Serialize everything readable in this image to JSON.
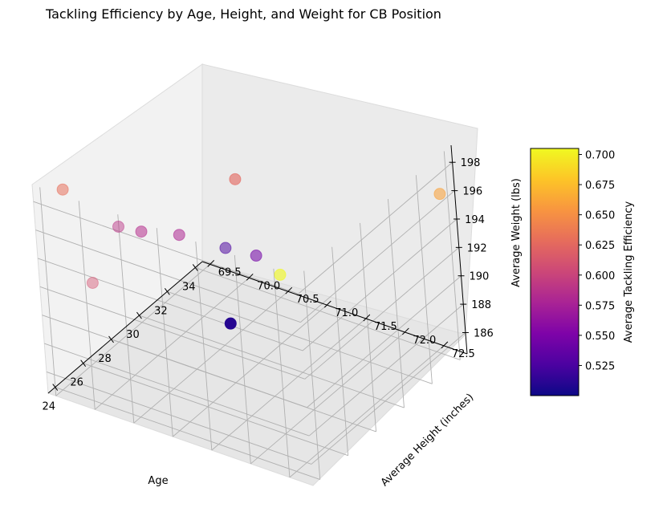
{
  "chart_data": {
    "type": "scatter",
    "projection": "3d",
    "title": "Tackling Efficiency by Age, Height, and Weight for CB Position",
    "xlabel": "Age",
    "ylabel": "Average Height (inches)",
    "zlabel": "Average Weight (lbs)",
    "colorbar_label": "Average Tackling Efficiency",
    "colormap": "plasma",
    "x_ticks": [
      "24",
      "26",
      "28",
      "30",
      "32",
      "34"
    ],
    "y_ticks": [
      "69.5",
      "70.0",
      "70.5",
      "71.0",
      "71.5",
      "72.0",
      "72.5"
    ],
    "z_ticks": [
      "186",
      "188",
      "190",
      "192",
      "194",
      "196",
      "198"
    ],
    "colorbar_ticks": [
      "0.525",
      "0.550",
      "0.575",
      "0.600",
      "0.625",
      "0.650",
      "0.675",
      "0.700"
    ],
    "xlim": [
      23.5,
      34.5
    ],
    "ylim": [
      69.4,
      72.8
    ],
    "zlim": [
      184.5,
      199.2
    ],
    "clim": [
      0.5,
      0.705
    ],
    "grid": true,
    "points": [
      {
        "age": 24,
        "height": 69.7,
        "weight": 199.0,
        "efficiency": 0.63
      },
      {
        "age": 25,
        "height": 70.2,
        "weight": 196.5,
        "efficiency": 0.59
      },
      {
        "age": 26,
        "height": 70.3,
        "weight": 195.5,
        "efficiency": 0.585
      },
      {
        "age": 29,
        "height": 71.0,
        "weight": 198.0,
        "efficiency": 0.625
      },
      {
        "age": 27,
        "height": 70.6,
        "weight": 195.0,
        "efficiency": 0.58
      },
      {
        "age": 28,
        "height": 71.0,
        "weight": 194.0,
        "efficiency": 0.525
      },
      {
        "age": 24,
        "height": 70.0,
        "weight": 193.0,
        "efficiency": 0.61
      },
      {
        "age": 29,
        "height": 71.2,
        "weight": 193.0,
        "efficiency": 0.545
      },
      {
        "age": 30,
        "height": 71.3,
        "weight": 191.0,
        "efficiency": 0.705
      },
      {
        "age": 34,
        "height": 72.7,
        "weight": 196.0,
        "efficiency": 0.66
      },
      {
        "age": 31,
        "height": 70.4,
        "weight": 185.0,
        "efficiency": 0.51
      }
    ]
  }
}
